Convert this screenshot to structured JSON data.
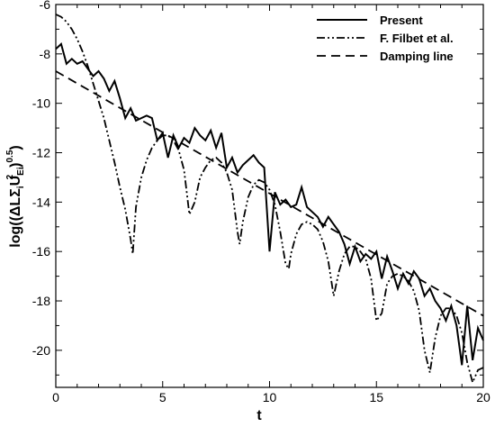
{
  "chart_data": {
    "type": "line",
    "xlabel": "t",
    "ylabel": {
      "pre": "log((",
      "delta": "Δ",
      "L": "L",
      "sigma": "Σ",
      "sub_i": "i",
      "U": "U",
      "sub_Ei": "Ei",
      "sup_2": "2",
      "mid": ")",
      "sup_05": "0.5",
      "post": ")"
    },
    "xlim": [
      0,
      20
    ],
    "ylim": [
      -21.5,
      -6
    ],
    "xticks": [
      0,
      5,
      10,
      15,
      20
    ],
    "yticks": [
      -20,
      -18,
      -16,
      -14,
      -12,
      -10,
      -8,
      -6
    ],
    "grid": false,
    "legend_position": "top-right",
    "series": [
      {
        "name": "Present",
        "style": "solid",
        "x": [
          0,
          0.25,
          0.5,
          0.75,
          1.0,
          1.25,
          1.5,
          1.75,
          2.0,
          2.25,
          2.5,
          2.75,
          3.0,
          3.25,
          3.5,
          3.75,
          4.0,
          4.25,
          4.5,
          4.75,
          5.0,
          5.25,
          5.5,
          5.75,
          6.0,
          6.25,
          6.5,
          6.75,
          7.0,
          7.25,
          7.5,
          7.75,
          8.0,
          8.25,
          8.5,
          8.75,
          9.0,
          9.25,
          9.5,
          9.75,
          10.0,
          10.25,
          10.5,
          10.75,
          11.0,
          11.25,
          11.5,
          11.75,
          12.0,
          12.25,
          12.5,
          12.75,
          13.0,
          13.25,
          13.5,
          13.75,
          14.0,
          14.25,
          14.5,
          14.75,
          15.0,
          15.25,
          15.5,
          15.75,
          16.0,
          16.25,
          16.5,
          16.75,
          17.0,
          17.25,
          17.5,
          17.75,
          18.0,
          18.25,
          18.5,
          18.75,
          19.0,
          19.25,
          19.5,
          19.75,
          20.0
        ],
        "y": [
          -7.8,
          -7.6,
          -8.4,
          -8.2,
          -8.4,
          -8.3,
          -8.6,
          -8.9,
          -8.7,
          -9.0,
          -9.5,
          -9.1,
          -9.8,
          -10.6,
          -10.2,
          -10.7,
          -10.6,
          -10.5,
          -10.6,
          -11.5,
          -11.2,
          -12.2,
          -11.3,
          -11.8,
          -11.4,
          -11.6,
          -11.0,
          -11.3,
          -11.5,
          -11.1,
          -11.8,
          -11.2,
          -12.6,
          -12.2,
          -12.8,
          -12.5,
          -12.3,
          -12.1,
          -12.4,
          -12.6,
          -16.0,
          -13.6,
          -14.1,
          -13.9,
          -14.2,
          -14.1,
          -13.4,
          -14.2,
          -14.4,
          -14.6,
          -15.0,
          -14.6,
          -14.9,
          -15.2,
          -15.7,
          -16.5,
          -15.8,
          -16.4,
          -16.1,
          -16.3,
          -16.0,
          -17.1,
          -16.2,
          -16.8,
          -17.5,
          -16.9,
          -17.3,
          -16.8,
          -17.1,
          -17.8,
          -17.5,
          -18.0,
          -18.3,
          -18.8,
          -18.2,
          -19.0,
          -20.6,
          -18.2,
          -20.4,
          -19.1,
          -19.6
        ]
      },
      {
        "name": "F. Filbet et al.",
        "style": "dashdotdot",
        "x": [
          0,
          0.25,
          0.5,
          0.75,
          1.0,
          1.25,
          1.5,
          1.75,
          2.0,
          2.25,
          2.5,
          2.75,
          3.0,
          3.25,
          3.5,
          3.6,
          3.75,
          4.0,
          4.25,
          4.5,
          4.75,
          5.0,
          5.25,
          5.5,
          5.75,
          6.0,
          6.25,
          6.5,
          6.75,
          7.0,
          7.25,
          7.5,
          7.75,
          8.0,
          8.25,
          8.5,
          8.6,
          8.75,
          9.0,
          9.25,
          9.5,
          9.75,
          10.0,
          10.25,
          10.5,
          10.75,
          10.9,
          11.0,
          11.25,
          11.5,
          11.75,
          12.0,
          12.25,
          12.5,
          12.75,
          13.0,
          13.25,
          13.5,
          13.75,
          14.0,
          14.25,
          14.5,
          14.75,
          15.0,
          15.25,
          15.5,
          15.75,
          16.0,
          16.25,
          16.5,
          16.75,
          17.0,
          17.25,
          17.5,
          17.75,
          18.0,
          18.25,
          18.5,
          18.75,
          19.0,
          19.25,
          19.5,
          19.75,
          20.0
        ],
        "y": [
          -6.4,
          -6.5,
          -6.7,
          -7.0,
          -7.4,
          -7.9,
          -8.5,
          -9.2,
          -9.9,
          -10.6,
          -11.5,
          -12.4,
          -13.4,
          -14.3,
          -15.5,
          -16.1,
          -14.2,
          -13.0,
          -12.3,
          -11.8,
          -11.5,
          -11.3,
          -11.3,
          -11.5,
          -11.9,
          -12.7,
          -14.5,
          -14.0,
          -13.0,
          -12.6,
          -12.3,
          -12.2,
          -12.4,
          -12.8,
          -13.5,
          -15.2,
          -15.7,
          -14.8,
          -13.8,
          -13.3,
          -13.1,
          -13.2,
          -13.5,
          -14.1,
          -15.2,
          -16.5,
          -16.7,
          -16.1,
          -15.3,
          -14.9,
          -14.8,
          -14.9,
          -15.1,
          -15.6,
          -16.4,
          -17.8,
          -16.8,
          -16.1,
          -15.8,
          -15.8,
          -16.0,
          -16.3,
          -17.1,
          -18.8,
          -18.5,
          -17.3,
          -17.0,
          -16.9,
          -17.0,
          -17.2,
          -17.6,
          -18.4,
          -20.0,
          -20.9,
          -19.5,
          -18.6,
          -18.3,
          -18.3,
          -18.6,
          -19.3,
          -20.5,
          -21.3,
          -20.8,
          -20.7
        ]
      },
      {
        "name": "Damping line",
        "style": "dashed",
        "x": [
          0,
          20
        ],
        "y": [
          -8.7,
          -18.6
        ]
      }
    ]
  }
}
